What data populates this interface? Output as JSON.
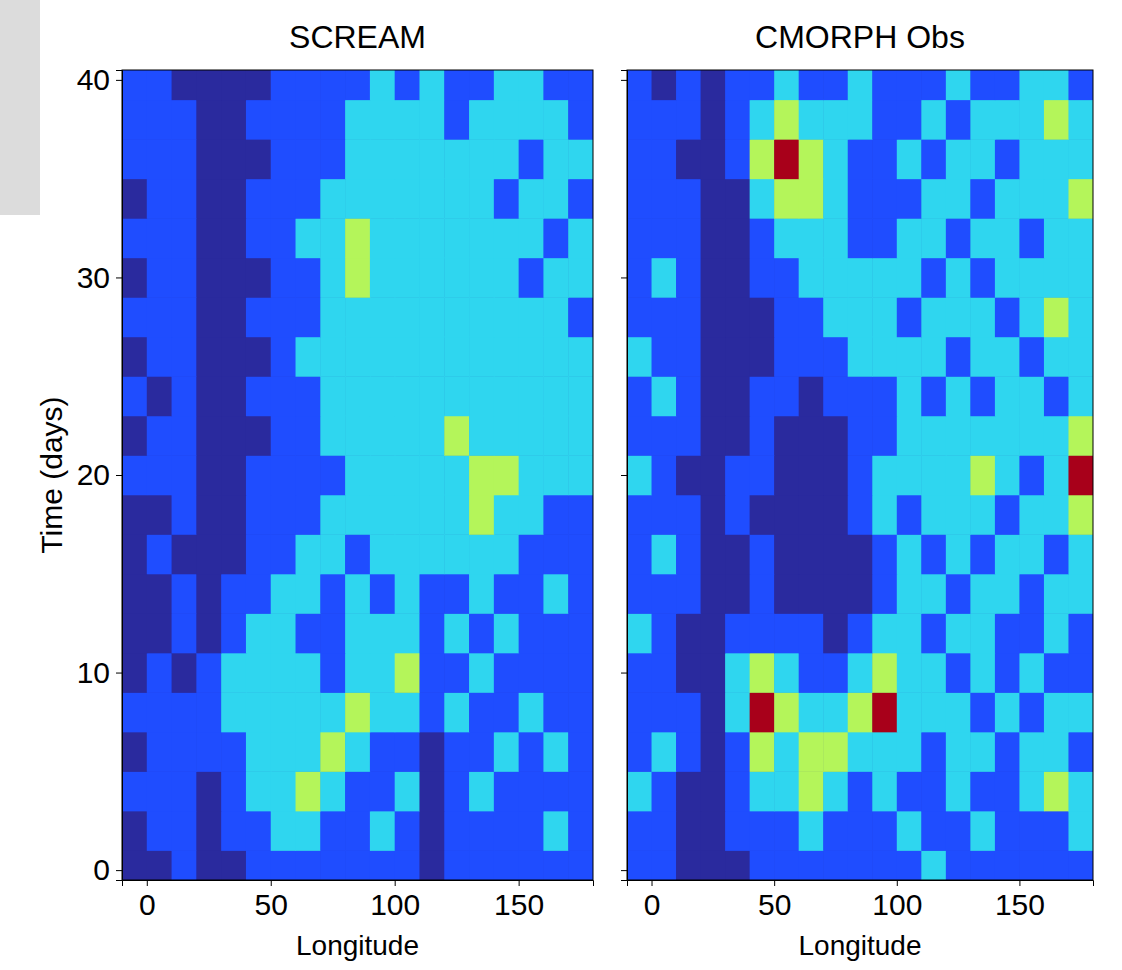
{
  "chart_data": [
    {
      "type": "heatmap",
      "title": "SCREAM",
      "x_label": "Longitude",
      "y_label": "Time (days)",
      "xlim": [
        -10,
        180
      ],
      "xticks": [
        0,
        50,
        100,
        150
      ],
      "ylim": [
        -0.5,
        40.5
      ],
      "yticks": [
        0,
        10,
        20,
        30,
        40
      ],
      "tick_labels": true,
      "zlim": [
        0,
        4
      ],
      "x": [
        -5,
        5,
        15,
        25,
        35,
        45,
        55,
        65,
        75,
        85,
        95,
        105,
        115,
        125,
        135,
        145,
        155,
        165,
        175
      ],
      "y": [
        0,
        2,
        4,
        6,
        8,
        10,
        12,
        14,
        16,
        18,
        20,
        22,
        24,
        26,
        28,
        30,
        32,
        34,
        36,
        38,
        40
      ],
      "z": [
        [
          0,
          0,
          1,
          0,
          0,
          1,
          1,
          1,
          1,
          1,
          1,
          1,
          0,
          1,
          1,
          1,
          1,
          1,
          1
        ],
        [
          0,
          1,
          1,
          0,
          1,
          1,
          2,
          2,
          1,
          1,
          2,
          1,
          0,
          1,
          1,
          1,
          1,
          2,
          1
        ],
        [
          1,
          1,
          1,
          0,
          1,
          2,
          2,
          3,
          2,
          1,
          1,
          2,
          0,
          1,
          2,
          1,
          1,
          1,
          1
        ],
        [
          0,
          1,
          1,
          1,
          1,
          2,
          2,
          2,
          3,
          2,
          1,
          1,
          0,
          1,
          1,
          2,
          1,
          2,
          1
        ],
        [
          1,
          1,
          1,
          1,
          2,
          2,
          2,
          2,
          2,
          3,
          2,
          2,
          1,
          2,
          1,
          1,
          2,
          1,
          1
        ],
        [
          0,
          1,
          0,
          1,
          2,
          2,
          2,
          2,
          1,
          2,
          2,
          3,
          1,
          1,
          2,
          1,
          1,
          1,
          1
        ],
        [
          0,
          0,
          1,
          0,
          1,
          2,
          2,
          1,
          1,
          2,
          2,
          2,
          1,
          2,
          1,
          2,
          1,
          1,
          1
        ],
        [
          0,
          0,
          1,
          0,
          1,
          1,
          2,
          2,
          1,
          2,
          1,
          2,
          1,
          1,
          2,
          1,
          1,
          2,
          1
        ],
        [
          0,
          1,
          0,
          0,
          0,
          1,
          1,
          2,
          2,
          1,
          2,
          2,
          2,
          2,
          2,
          2,
          1,
          1,
          1
        ],
        [
          0,
          0,
          1,
          0,
          0,
          1,
          1,
          1,
          2,
          2,
          2,
          2,
          2,
          2,
          3,
          2,
          2,
          1,
          1
        ],
        [
          1,
          1,
          1,
          0,
          0,
          1,
          1,
          1,
          1,
          2,
          2,
          2,
          2,
          2,
          3,
          3,
          2,
          2,
          2
        ],
        [
          0,
          1,
          1,
          0,
          0,
          0,
          1,
          1,
          2,
          2,
          2,
          2,
          2,
          3,
          2,
          2,
          2,
          2,
          2
        ],
        [
          1,
          0,
          1,
          0,
          0,
          1,
          1,
          1,
          2,
          2,
          2,
          2,
          2,
          2,
          2,
          2,
          2,
          2,
          2
        ],
        [
          0,
          1,
          1,
          0,
          0,
          0,
          1,
          2,
          2,
          2,
          2,
          2,
          2,
          2,
          2,
          2,
          2,
          2,
          2
        ],
        [
          1,
          1,
          1,
          0,
          0,
          1,
          1,
          1,
          2,
          2,
          2,
          2,
          2,
          2,
          2,
          2,
          2,
          2,
          1
        ],
        [
          0,
          1,
          1,
          0,
          0,
          0,
          1,
          1,
          2,
          3,
          2,
          2,
          2,
          2,
          2,
          2,
          1,
          2,
          2
        ],
        [
          1,
          1,
          1,
          0,
          0,
          1,
          1,
          2,
          2,
          3,
          2,
          2,
          2,
          2,
          2,
          2,
          2,
          1,
          2
        ],
        [
          0,
          1,
          1,
          0,
          0,
          1,
          1,
          1,
          2,
          2,
          2,
          2,
          2,
          2,
          2,
          1,
          2,
          2,
          1
        ],
        [
          1,
          1,
          1,
          0,
          0,
          0,
          1,
          1,
          1,
          2,
          2,
          2,
          2,
          2,
          2,
          2,
          1,
          2,
          2
        ],
        [
          1,
          1,
          1,
          0,
          0,
          1,
          1,
          1,
          1,
          2,
          2,
          2,
          2,
          1,
          2,
          2,
          2,
          2,
          1
        ],
        [
          1,
          1,
          0,
          0,
          0,
          0,
          1,
          1,
          1,
          1,
          2,
          1,
          2,
          1,
          1,
          2,
          2,
          1,
          1
        ]
      ]
    },
    {
      "type": "heatmap",
      "title": "CMORPH Obs",
      "x_label": "Longitude",
      "xlim": [
        -10,
        180
      ],
      "xticks": [
        0,
        50,
        100,
        150
      ],
      "ylim": [
        -0.5,
        40.5
      ],
      "yticks": [
        0,
        10,
        20,
        30,
        40
      ],
      "tick_labels": "x",
      "zlim": [
        0,
        4
      ],
      "x": [
        -5,
        5,
        15,
        25,
        35,
        45,
        55,
        65,
        75,
        85,
        95,
        105,
        115,
        125,
        135,
        145,
        155,
        165,
        175
      ],
      "y": [
        0,
        2,
        4,
        6,
        8,
        10,
        12,
        14,
        16,
        18,
        20,
        22,
        24,
        26,
        28,
        30,
        32,
        34,
        36,
        38,
        40
      ],
      "z": [
        [
          1,
          1,
          0,
          0,
          0,
          1,
          1,
          1,
          1,
          1,
          1,
          1,
          2,
          1,
          1,
          1,
          1,
          1,
          1
        ],
        [
          1,
          1,
          0,
          0,
          1,
          1,
          1,
          2,
          1,
          1,
          1,
          2,
          1,
          1,
          2,
          1,
          1,
          1,
          2
        ],
        [
          2,
          1,
          0,
          0,
          1,
          2,
          2,
          3,
          2,
          1,
          2,
          1,
          1,
          2,
          1,
          1,
          2,
          3,
          2
        ],
        [
          1,
          2,
          1,
          0,
          1,
          3,
          2,
          3,
          3,
          2,
          2,
          2,
          1,
          2,
          2,
          1,
          2,
          2,
          1
        ],
        [
          1,
          1,
          1,
          0,
          2,
          4,
          3,
          2,
          2,
          3,
          4,
          2,
          2,
          2,
          1,
          2,
          1,
          2,
          2
        ],
        [
          1,
          1,
          0,
          0,
          2,
          3,
          2,
          1,
          1,
          2,
          3,
          2,
          2,
          1,
          2,
          1,
          2,
          1,
          1
        ],
        [
          2,
          1,
          0,
          0,
          1,
          1,
          1,
          1,
          0,
          1,
          2,
          2,
          1,
          2,
          2,
          1,
          1,
          2,
          1
        ],
        [
          1,
          1,
          1,
          0,
          0,
          1,
          0,
          0,
          0,
          0,
          1,
          2,
          2,
          1,
          2,
          2,
          1,
          2,
          2
        ],
        [
          1,
          2,
          1,
          0,
          0,
          1,
          0,
          0,
          0,
          0,
          1,
          2,
          1,
          2,
          1,
          2,
          2,
          1,
          2
        ],
        [
          1,
          1,
          1,
          0,
          1,
          0,
          0,
          0,
          0,
          1,
          2,
          1,
          2,
          2,
          2,
          1,
          2,
          2,
          3
        ],
        [
          2,
          1,
          0,
          0,
          1,
          1,
          0,
          0,
          0,
          1,
          2,
          2,
          2,
          2,
          3,
          2,
          1,
          2,
          4
        ],
        [
          1,
          1,
          1,
          0,
          0,
          1,
          0,
          0,
          0,
          1,
          1,
          2,
          2,
          2,
          2,
          2,
          2,
          2,
          3
        ],
        [
          1,
          2,
          1,
          0,
          0,
          1,
          1,
          0,
          1,
          1,
          1,
          2,
          1,
          2,
          1,
          2,
          2,
          1,
          2
        ],
        [
          2,
          1,
          1,
          0,
          0,
          0,
          1,
          1,
          1,
          2,
          2,
          2,
          2,
          1,
          2,
          2,
          1,
          2,
          2
        ],
        [
          1,
          1,
          1,
          0,
          0,
          0,
          1,
          1,
          2,
          2,
          2,
          1,
          2,
          2,
          2,
          1,
          2,
          3,
          2
        ],
        [
          1,
          2,
          1,
          0,
          0,
          1,
          1,
          2,
          2,
          2,
          2,
          2,
          1,
          2,
          1,
          2,
          2,
          2,
          2
        ],
        [
          1,
          1,
          1,
          0,
          0,
          1,
          2,
          2,
          2,
          1,
          1,
          2,
          2,
          1,
          2,
          2,
          1,
          2,
          2
        ],
        [
          1,
          1,
          1,
          0,
          0,
          2,
          3,
          3,
          2,
          1,
          1,
          1,
          2,
          2,
          1,
          2,
          2,
          2,
          3
        ],
        [
          1,
          1,
          0,
          0,
          1,
          3,
          4,
          3,
          2,
          1,
          1,
          2,
          1,
          2,
          2,
          1,
          2,
          2,
          2
        ],
        [
          1,
          1,
          1,
          0,
          1,
          2,
          3,
          2,
          2,
          2,
          1,
          1,
          2,
          1,
          2,
          2,
          2,
          3,
          2
        ],
        [
          1,
          0,
          1,
          0,
          1,
          1,
          2,
          1,
          1,
          2,
          1,
          1,
          1,
          2,
          1,
          1,
          2,
          2,
          1
        ]
      ]
    }
  ]
}
